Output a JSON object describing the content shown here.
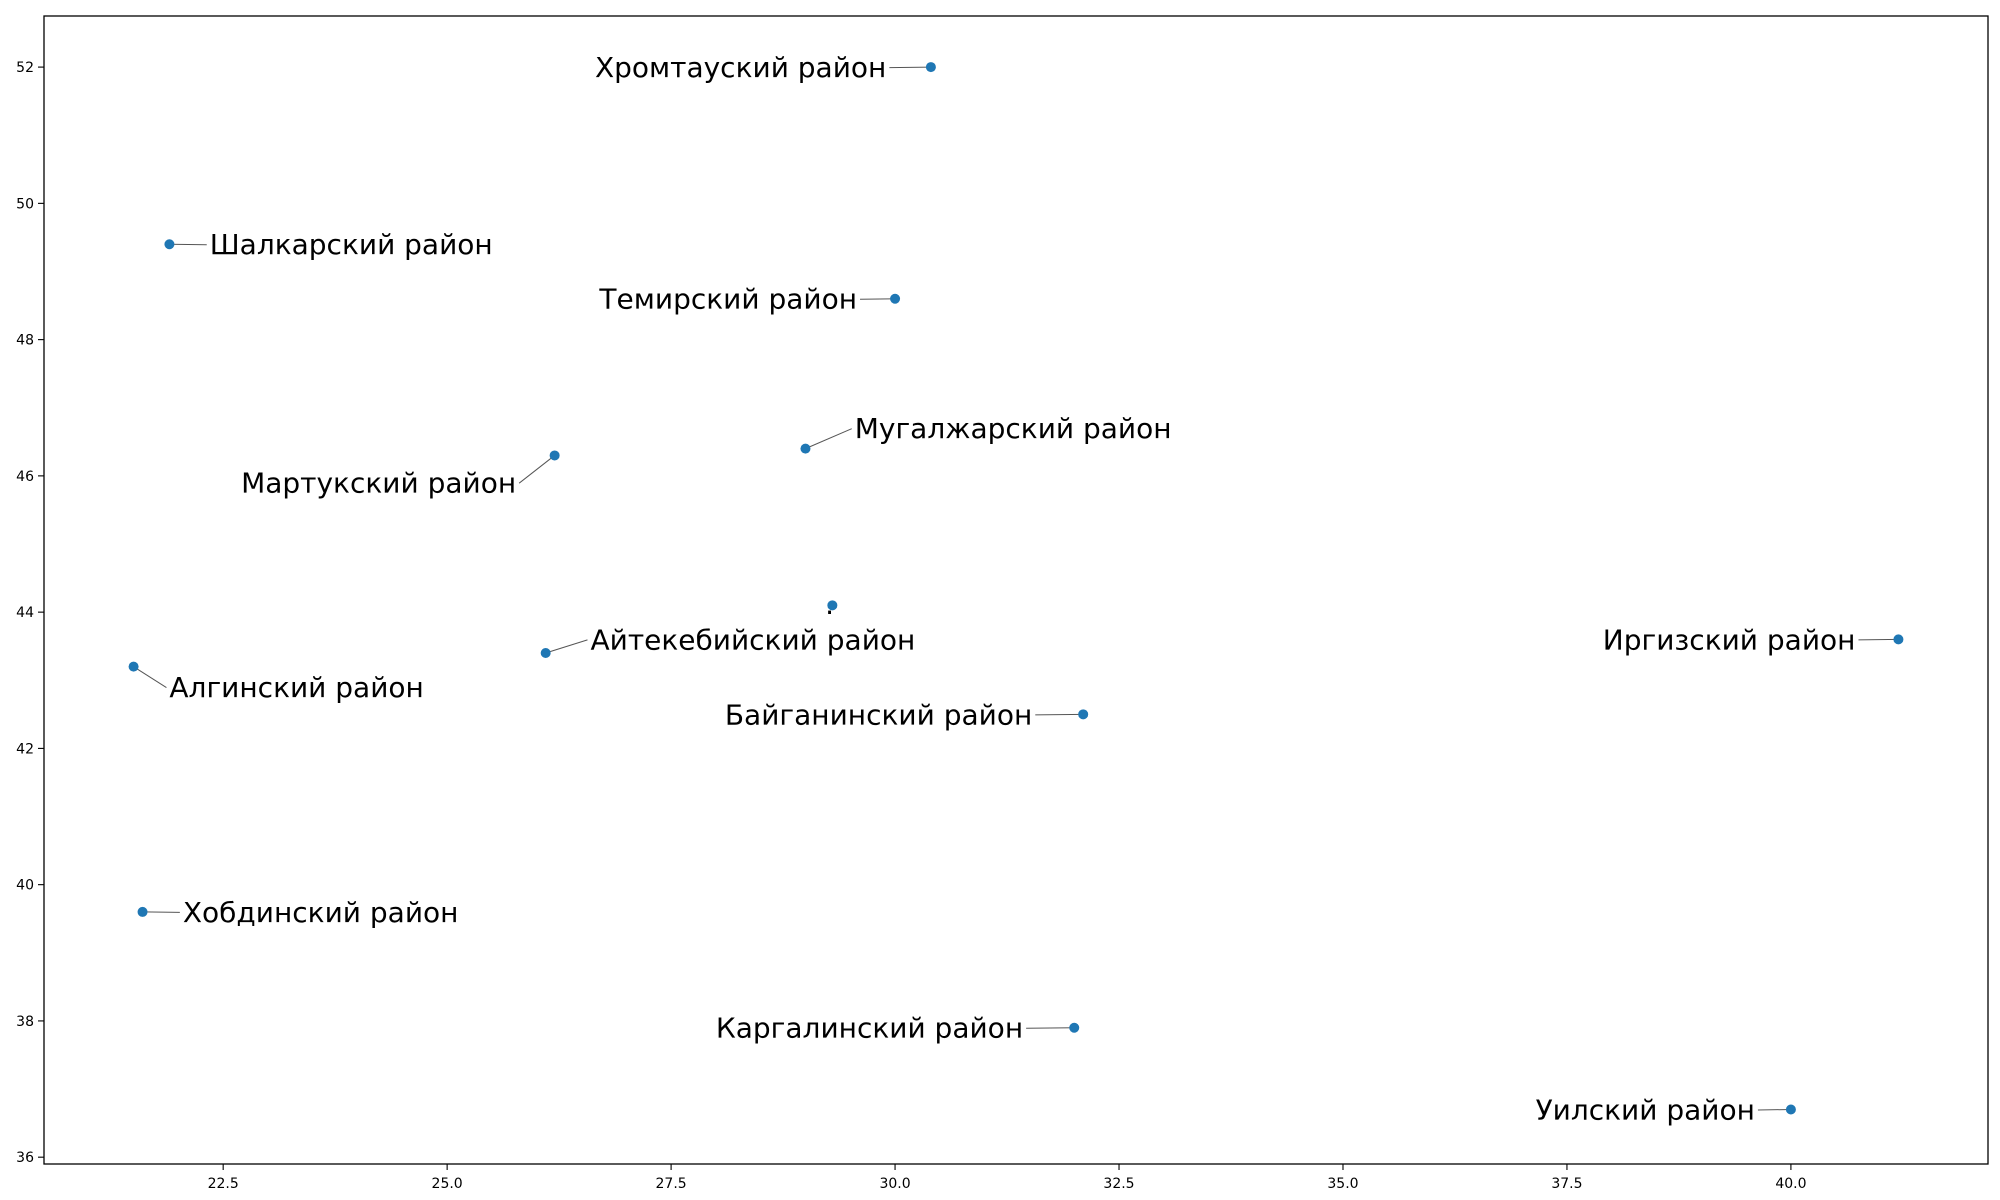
{
  "chart_data": {
    "type": "scatter",
    "title": "",
    "xlabel": "",
    "ylabel": "",
    "xlim": [
      20.5,
      42.2
    ],
    "ylim": [
      35.9,
      52.75
    ],
    "grid": false,
    "legend": null,
    "marker_color": "#1f77b4",
    "x_ticks": [
      22.5,
      25.0,
      27.5,
      30.0,
      32.5,
      35.0,
      37.5,
      40.0
    ],
    "x_tick_labels": [
      "22.5",
      "25.0",
      "27.5",
      "30.0",
      "32.5",
      "35.0",
      "37.5",
      "40.0"
    ],
    "y_ticks": [
      36,
      38,
      40,
      42,
      44,
      46,
      48,
      50,
      52
    ],
    "y_tick_labels": [
      "36",
      "38",
      "40",
      "42",
      "44",
      "46",
      "48",
      "50",
      "52"
    ],
    "points": [
      {
        "label": "Хромтауский район",
        "x": 30.4,
        "y": 52.0,
        "label_x": 26.65,
        "label_y": 52.0,
        "anchor": "start"
      },
      {
        "label": "Шалкарский район",
        "x": 21.9,
        "y": 49.4,
        "label_x": 22.35,
        "label_y": 49.4,
        "anchor": "start"
      },
      {
        "label": "Темирский район",
        "x": 30.0,
        "y": 48.6,
        "label_x": 26.7,
        "label_y": 48.6,
        "anchor": "start"
      },
      {
        "label": "Мугалжарский район",
        "x": 29.0,
        "y": 46.4,
        "label_x": 29.55,
        "label_y": 46.7,
        "anchor": "start"
      },
      {
        "label": "Мартукский район",
        "x": 26.2,
        "y": 46.3,
        "label_x": 22.7,
        "label_y": 45.9,
        "anchor": "start"
      },
      {
        "label": "Айтекебийский район",
        "x": 26.1,
        "y": 43.4,
        "label_x": 26.6,
        "label_y": 43.6,
        "anchor": "start"
      },
      {
        "label": "Алгинский район",
        "x": 21.5,
        "y": 43.2,
        "label_x": 21.9,
        "label_y": 42.9,
        "anchor": "start"
      },
      {
        "label": "Иргизский район",
        "x": 41.2,
        "y": 43.6,
        "label_x": 37.9,
        "label_y": 43.6,
        "anchor": "start"
      },
      {
        "label": "Байганинский район",
        "x": 32.1,
        "y": 42.5,
        "label_x": 28.1,
        "label_y": 42.5,
        "anchor": "start"
      },
      {
        "label": "Хобдинский район",
        "x": 21.6,
        "y": 39.6,
        "label_x": 22.05,
        "label_y": 39.6,
        "anchor": "start"
      },
      {
        "label": "Каргалинский район",
        "x": 32.0,
        "y": 37.9,
        "label_x": 28.0,
        "label_y": 37.9,
        "anchor": "start"
      },
      {
        "label": "Уилский район",
        "x": 40.0,
        "y": 36.7,
        "label_x": 37.15,
        "label_y": 36.7,
        "anchor": "start"
      },
      {
        "label": "",
        "x": 29.3,
        "y": 44.1,
        "label_x": 29.22,
        "label_y": 44.0,
        "anchor": "start"
      }
    ]
  }
}
